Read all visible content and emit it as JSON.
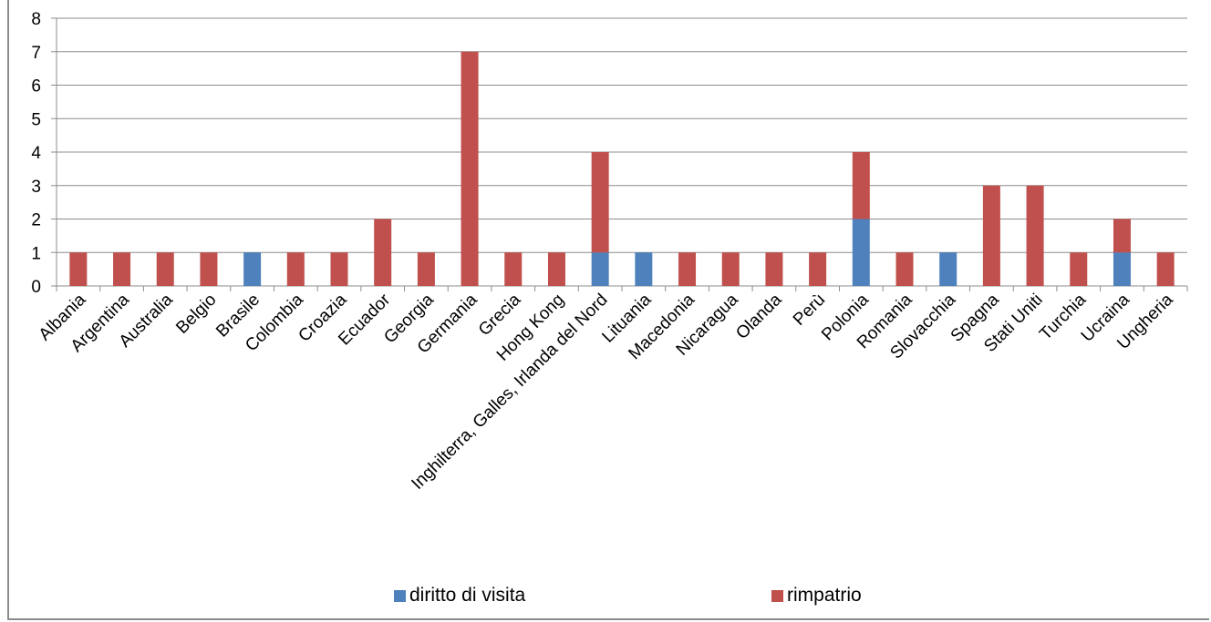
{
  "chart_data": {
    "type": "bar",
    "stacked": true,
    "categories": [
      "Albania",
      "Argentina",
      "Australia",
      "Belgio",
      "Brasile",
      "Colombia",
      "Croazia",
      "Ecuador",
      "Georgia",
      "Germania",
      "Grecia",
      "Hong Kong",
      "Inghilterra, Galles, Irlanda del Nord",
      "Lituania",
      "Macedonia",
      "Nicaragua",
      "Olanda",
      "Perù",
      "Polonia",
      "Romania",
      "Slovacchia",
      "Spagna",
      "Stati Uniti",
      "Turchia",
      "Ucraina",
      "Ungheria"
    ],
    "series": [
      {
        "name": "diritto di visita",
        "color": "#4f81bd",
        "values": [
          0,
          0,
          0,
          0,
          1,
          0,
          0,
          0,
          0,
          0,
          0,
          0,
          1,
          1,
          0,
          0,
          0,
          0,
          2,
          0,
          1,
          0,
          0,
          0,
          1,
          0
        ]
      },
      {
        "name": "rimpatrio",
        "color": "#c0504d",
        "values": [
          1,
          1,
          1,
          1,
          0,
          1,
          1,
          2,
          1,
          7,
          1,
          1,
          3,
          0,
          1,
          1,
          1,
          1,
          2,
          1,
          0,
          3,
          3,
          1,
          1,
          1
        ]
      }
    ],
    "ylim": [
      0,
      8
    ],
    "yticks": [
      "0",
      "1",
      "2",
      "3",
      "4",
      "5",
      "6",
      "7",
      "8"
    ],
    "grid": true,
    "legend_position": "bottom"
  },
  "legend": {
    "visit_label": "diritto di visita",
    "repatriation_label": "rimpatrio"
  }
}
